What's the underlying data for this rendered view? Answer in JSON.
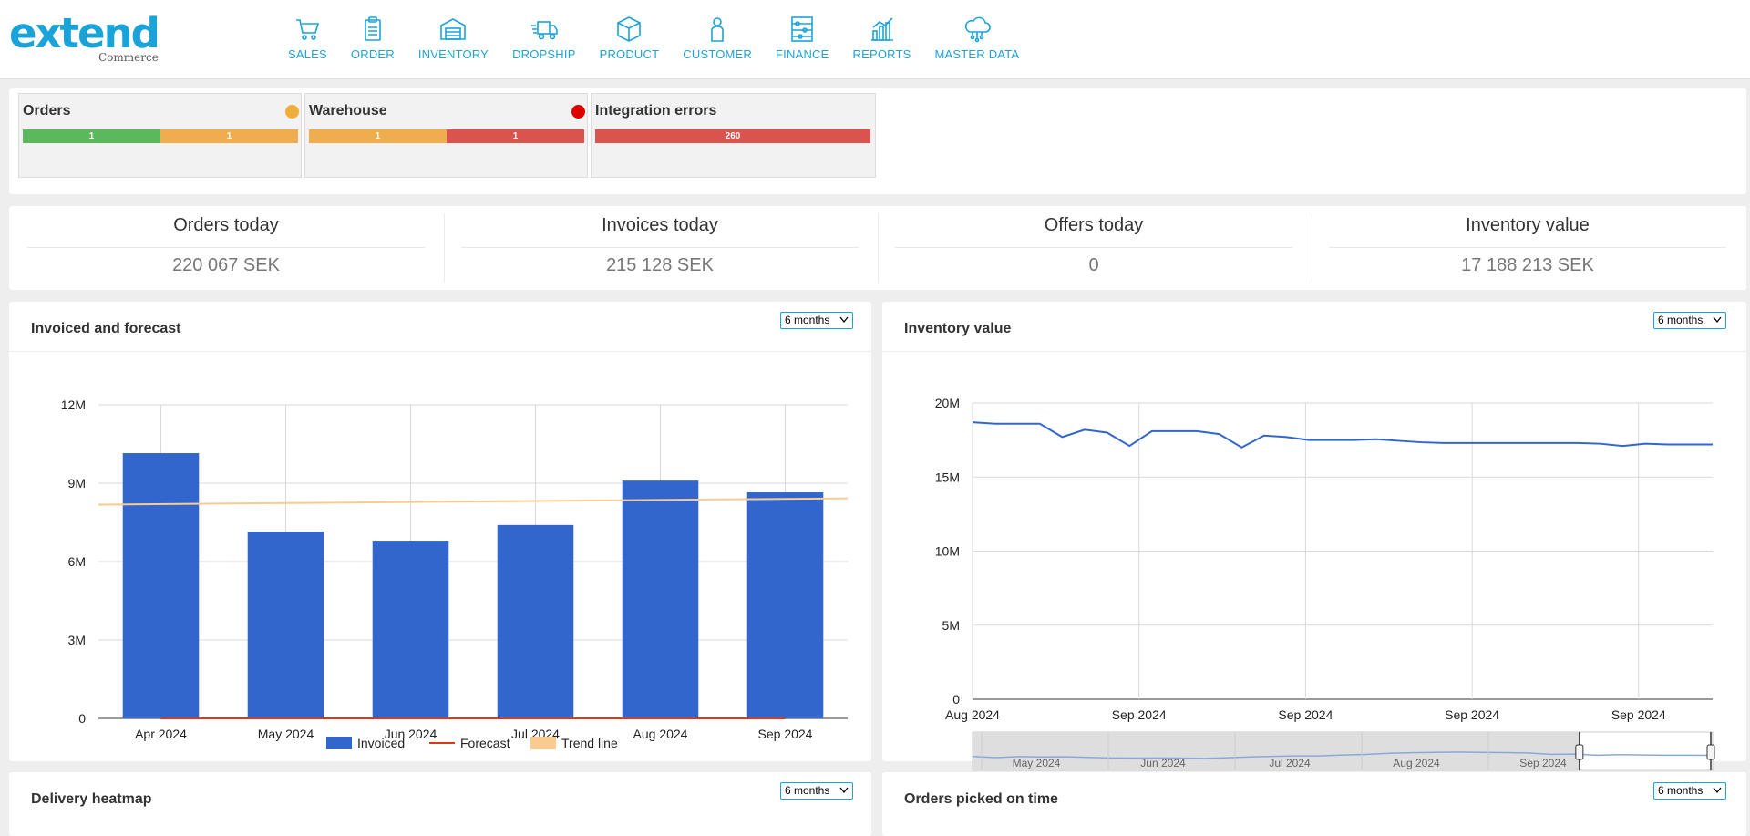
{
  "header": {
    "logo_text": "extend",
    "logo_sub": "Commerce",
    "nav": [
      {
        "label": "SALES",
        "icon": "cart-icon"
      },
      {
        "label": "ORDER",
        "icon": "clipboard-icon"
      },
      {
        "label": "INVENTORY",
        "icon": "warehouse-icon"
      },
      {
        "label": "DROPSHIP",
        "icon": "truck-icon"
      },
      {
        "label": "PRODUCT",
        "icon": "box-icon"
      },
      {
        "label": "CUSTOMER",
        "icon": "person-icon"
      },
      {
        "label": "FINANCE",
        "icon": "abacus-icon"
      },
      {
        "label": "REPORTS",
        "icon": "chart-icon"
      },
      {
        "label": "MASTER DATA",
        "icon": "cloud-icon"
      }
    ]
  },
  "status": {
    "orders": {
      "title": "Orders",
      "dot_color": "#f0ad3c",
      "segments": [
        {
          "label": "1",
          "value": 1,
          "color": "#5cb85c"
        },
        {
          "label": "1",
          "value": 1,
          "color": "#f0ad4e"
        }
      ]
    },
    "warehouse": {
      "title": "Warehouse",
      "dot_color": "#e00000",
      "segments": [
        {
          "label": "1",
          "value": 1,
          "color": "#f0ad4e"
        },
        {
          "label": "1",
          "value": 1,
          "color": "#d9534f"
        }
      ]
    },
    "integration": {
      "title": "Integration errors",
      "segments": [
        {
          "label": "260",
          "value": 260,
          "color": "#d9534f"
        }
      ]
    }
  },
  "kpis": [
    {
      "title": "Orders today",
      "value": "220 067 SEK"
    },
    {
      "title": "Invoices today",
      "value": "215 128 SEK"
    },
    {
      "title": "Offers today",
      "value": "0"
    },
    {
      "title": "Inventory value",
      "value": "17 188 213 SEK"
    }
  ],
  "panels": {
    "invoiced": {
      "title": "Invoiced and forecast",
      "range": "6 months"
    },
    "inventory": {
      "title": "Inventory value",
      "range": "6 months"
    },
    "heatmap": {
      "title": "Delivery heatmap",
      "range": "6 months"
    },
    "picked": {
      "title": "Orders picked on time",
      "range": "6 months"
    }
  },
  "chart_data": [
    {
      "type": "bar",
      "categories": [
        "Apr 2024",
        "May 2024",
        "Jun 2024",
        "Jul 2024",
        "Aug 2024",
        "Sep 2024"
      ],
      "series": [
        {
          "name": "Invoiced",
          "type": "bar",
          "color": "#3366cc",
          "values": [
            10150000,
            7150000,
            6800000,
            7400000,
            9100000,
            8650000
          ]
        },
        {
          "name": "Forecast",
          "type": "line",
          "color": "#dc3912",
          "values": [
            0,
            0,
            0,
            0,
            0,
            0
          ]
        },
        {
          "name": "Trend line",
          "type": "line",
          "color": "#f9cb8f",
          "values": [
            8200000,
            8240000,
            8280000,
            8320000,
            8360000,
            8400000
          ]
        }
      ],
      "yticks": [
        "0",
        "3M",
        "6M",
        "9M",
        "12M"
      ],
      "ylim": [
        0,
        12000000
      ],
      "legend": "bottom"
    },
    {
      "type": "line",
      "color": "#3366cc",
      "xticks": [
        "Aug 2024",
        "Sep 2024",
        "Sep 2024",
        "Sep 2024",
        "Sep 2024"
      ],
      "yticks": [
        "0",
        "5M",
        "10M",
        "15M",
        "20M"
      ],
      "ylim": [
        0,
        20000000
      ],
      "values": [
        18700000,
        18600000,
        18600000,
        18600000,
        17700000,
        18200000,
        18000000,
        17100000,
        18100000,
        18100000,
        18100000,
        17900000,
        17000000,
        17800000,
        17700000,
        17500000,
        17500000,
        17500000,
        17550000,
        17450000,
        17350000,
        17300000,
        17300000,
        17300000,
        17300000,
        17300000,
        17300000,
        17300000,
        17250000,
        17100000,
        17250000,
        17200000,
        17200000,
        17200000
      ],
      "navigator": {
        "labels": [
          "May 2024",
          "Jun 2024",
          "Jul 2024",
          "Aug 2024",
          "Sep 2024"
        ],
        "values": [
          16500000,
          15800000,
          16400000,
          16200000,
          16300000,
          15900000,
          15600000,
          15500000,
          15600000,
          15500000,
          15300000,
          15700000,
          16200000,
          16500000,
          16800000,
          16800000,
          17300000,
          17600000,
          18300000,
          18600000,
          18800000,
          19000000,
          18800000,
          18700000,
          18500000,
          17700000,
          17800000,
          17200000,
          17500000,
          17300000,
          17200000,
          17200000,
          17100000
        ],
        "selected_fraction": [
          0.82,
          1.0
        ]
      }
    }
  ]
}
